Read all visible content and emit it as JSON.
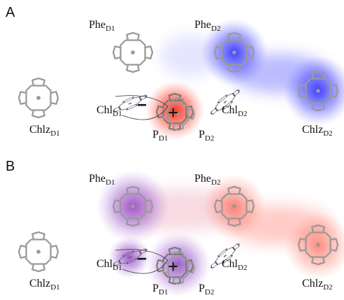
{
  "panels": [
    {
      "label": "A",
      "charges": [
        "−",
        "+"
      ],
      "molecules": [
        {
          "base": "Phe",
          "sub": "D1"
        },
        {
          "base": "Phe",
          "sub": "D2"
        },
        {
          "base": "Chlz",
          "sub": "D1"
        },
        {
          "base": "Chl",
          "sub": "D1"
        },
        {
          "base": "P",
          "sub": "D1"
        },
        {
          "base": "P",
          "sub": "D2"
        },
        {
          "base": "Chl",
          "sub": "D2"
        },
        {
          "base": "Chlz",
          "sub": "D2"
        }
      ]
    },
    {
      "label": "B",
      "charges": [
        "−",
        "+"
      ],
      "molecules": [
        {
          "base": "Phe",
          "sub": "D1"
        },
        {
          "base": "Phe",
          "sub": "D2"
        },
        {
          "base": "Chlz",
          "sub": "D1"
        },
        {
          "base": "Chl",
          "sub": "D1"
        },
        {
          "base": "P",
          "sub": "D1"
        },
        {
          "base": "P",
          "sub": "D2"
        },
        {
          "base": "Chl",
          "sub": "D2"
        },
        {
          "base": "Chlz",
          "sub": "D2"
        }
      ]
    }
  ]
}
